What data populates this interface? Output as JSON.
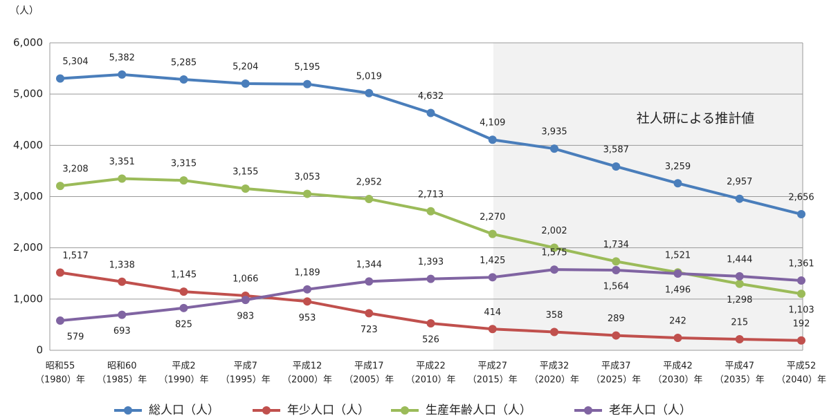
{
  "chart_data": {
    "type": "line",
    "y_unit": "（人）",
    "annotation": "社人研による推計値",
    "categories": [
      [
        "昭和55",
        "（1980）年"
      ],
      [
        "昭和60",
        "（1985）年"
      ],
      [
        "平成2",
        "（1990）年"
      ],
      [
        "平成7",
        "（1995）年"
      ],
      [
        "平成12",
        "（2000）年"
      ],
      [
        "平成17",
        "（2005）年"
      ],
      [
        "平成22",
        "（2010）年"
      ],
      [
        "平成27",
        "（2015）年"
      ],
      [
        "平成32",
        "（2020）年"
      ],
      [
        "平成37",
        "（2025）年"
      ],
      [
        "平成42",
        "（2030）年"
      ],
      [
        "平成47",
        "（2035）年"
      ],
      [
        "平成52",
        "（2040）年"
      ]
    ],
    "series": [
      {
        "name": "総人口（人）",
        "color": "#4a7ebb",
        "values": [
          5304,
          5382,
          5285,
          5204,
          5195,
          5019,
          4632,
          4109,
          3935,
          3587,
          3259,
          2957,
          2656
        ],
        "value_labels": [
          "5,304",
          "5,382",
          "5,285",
          "5,204",
          "5,195",
          "5,019",
          "4,632",
          "4,109",
          "3,935",
          "3,587",
          "3,259",
          "2,957",
          "2,656"
        ]
      },
      {
        "name": "年少人口（人）",
        "color": "#c0504d",
        "values": [
          1517,
          1338,
          1145,
          1066,
          953,
          723,
          526,
          414,
          358,
          289,
          242,
          215,
          192
        ],
        "value_labels": [
          "1,517",
          "1,338",
          "1,145",
          "1,066",
          "953",
          "723",
          "526",
          "414",
          "358",
          "289",
          "242",
          "215",
          "192"
        ]
      },
      {
        "name": "生産年齢人口（人）",
        "color": "#9bbb59",
        "values": [
          3208,
          3351,
          3315,
          3155,
          3053,
          2952,
          2713,
          2270,
          2002,
          1734,
          1521,
          1298,
          1103
        ],
        "value_labels": [
          "3,208",
          "3,351",
          "3,315",
          "3,155",
          "3,053",
          "2,952",
          "2,713",
          "2,270",
          "2,002",
          "1,734",
          "1,521",
          "1,298",
          "1,103"
        ]
      },
      {
        "name": "老年人口（人）",
        "color": "#8064a2",
        "values": [
          579,
          693,
          825,
          983,
          1189,
          1344,
          1393,
          1425,
          1575,
          1564,
          1496,
          1444,
          1361
        ],
        "value_labels": [
          "579",
          "693",
          "825",
          "983",
          "1,189",
          "1,344",
          "1,393",
          "1,425",
          "1,575",
          "1,564",
          "1,496",
          "1,444",
          "1,361"
        ]
      }
    ],
    "ylim": [
      0,
      6000
    ],
    "yticks": [
      0,
      {
        "value": 1000,
        "label": "1,000"
      },
      {
        "value": 2000,
        "label": "2,000"
      },
      {
        "value": 3000,
        "label": "3,000"
      },
      {
        "value": 4000,
        "label": "4,000"
      },
      {
        "value": 5000,
        "label": "5,000"
      },
      {
        "value": 6000,
        "label": "6,000"
      }
    ],
    "grid": true
  }
}
